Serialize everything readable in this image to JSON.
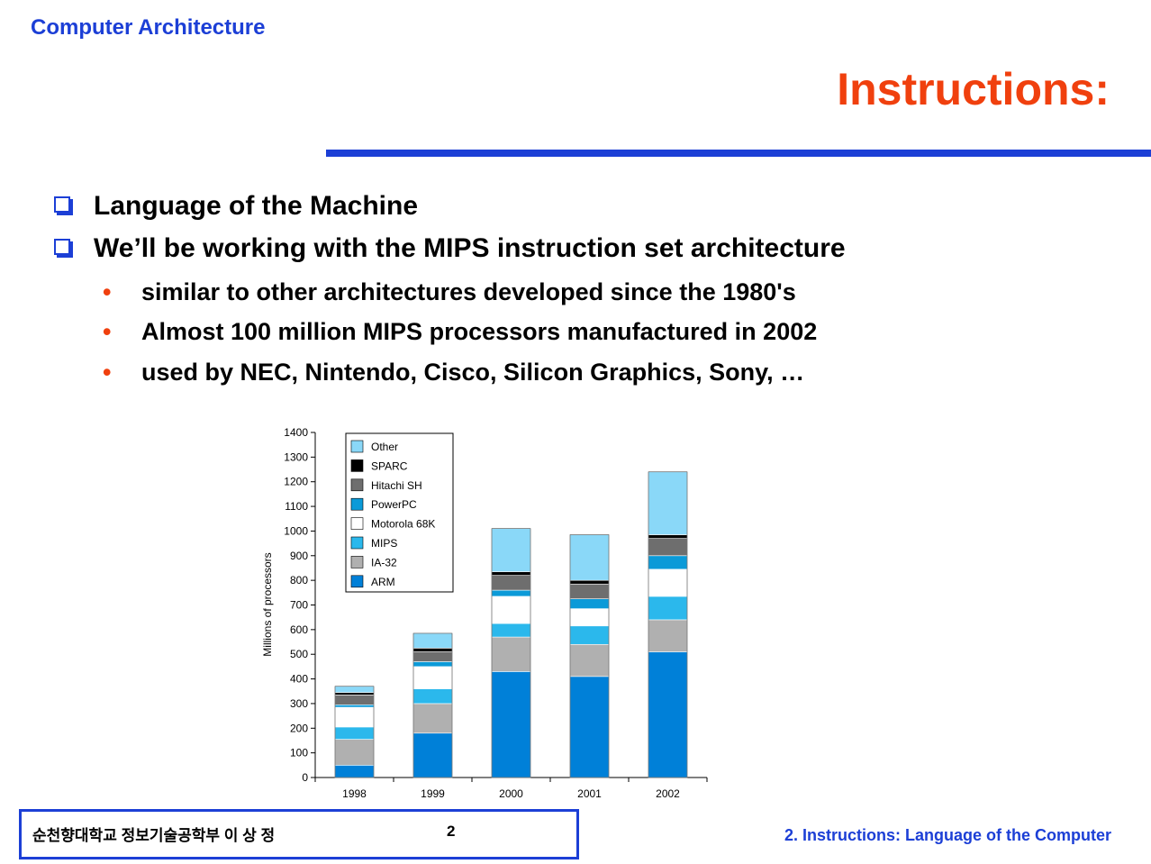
{
  "header": {
    "course": "Computer Architecture",
    "title": "Instructions:"
  },
  "bullets": [
    {
      "text": "Language of the Machine"
    },
    {
      "text": "We’ll be working with the MIPS instruction set architecture",
      "sub": [
        "similar to other architectures developed since the 1980's",
        "Almost 100 million MIPS processors manufactured in 2002",
        "used by NEC, Nintendo, Cisco, Silicon Graphics, Sony, …"
      ]
    }
  ],
  "chart_data": {
    "type": "bar",
    "stacked": true,
    "categories": [
      "1998",
      "1999",
      "2000",
      "2001",
      "2002"
    ],
    "ylabel": "Millions of processors",
    "ylim": [
      0,
      1400
    ],
    "yticks": [
      0,
      100,
      200,
      300,
      400,
      500,
      600,
      700,
      800,
      900,
      1000,
      1100,
      1200,
      1300,
      1400
    ],
    "legend": "top-left",
    "series": [
      {
        "name": "ARM",
        "color": "#0080d8",
        "values": [
          50,
          180,
          430,
          410,
          510
        ]
      },
      {
        "name": "IA-32",
        "color": "#b0b0b0",
        "values": [
          105,
          120,
          140,
          130,
          130
        ]
      },
      {
        "name": "MIPS",
        "color": "#2bb8ec",
        "values": [
          50,
          60,
          55,
          75,
          95
        ]
      },
      {
        "name": "Motorola 68K",
        "color": "#ffffff",
        "values": [
          80,
          90,
          110,
          70,
          110
        ]
      },
      {
        "name": "PowerPC",
        "color": "#0b9ad8",
        "values": [
          10,
          20,
          25,
          40,
          55
        ]
      },
      {
        "name": "Hitachi SH",
        "color": "#6e6e6e",
        "values": [
          40,
          40,
          60,
          60,
          70
        ]
      },
      {
        "name": "SPARC",
        "color": "#000000",
        "values": [
          10,
          15,
          15,
          15,
          15
        ]
      },
      {
        "name": "Other",
        "color": "#8ad8f8",
        "values": [
          25,
          60,
          175,
          185,
          255
        ]
      }
    ]
  },
  "footer": {
    "author": "순천향대학교 정보기술공학부    이 상 정",
    "page": "2",
    "chapter": "2. Instructions: Language of the Computer"
  }
}
